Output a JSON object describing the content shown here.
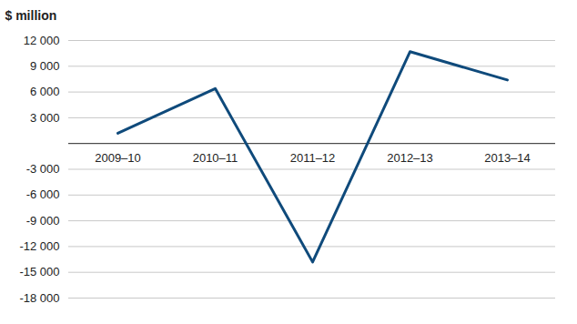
{
  "chart_data": {
    "type": "line",
    "y_label": "$ million",
    "categories": [
      "2009–10",
      "2010–11",
      "2011–12",
      "2012–13",
      "2013–14"
    ],
    "values": [
      1200,
      6400,
      -13800,
      10700,
      7400
    ],
    "color": "#0f4a7b",
    "ylim": [
      -18000,
      12000
    ],
    "yticks": [
      {
        "value": -18000,
        "label": "-18 000"
      },
      {
        "value": -15000,
        "label": "-15 000"
      },
      {
        "value": -12000,
        "label": "-12 000"
      },
      {
        "value": -9000,
        "label": "-9 000"
      },
      {
        "value": -6000,
        "label": "-6 000"
      },
      {
        "value": -3000,
        "label": "-3 000"
      },
      {
        "value": 3000,
        "label": "3 000"
      },
      {
        "value": 6000,
        "label": "6 000"
      },
      {
        "value": 9000,
        "label": "9 000"
      },
      {
        "value": 12000,
        "label": "12 000"
      }
    ],
    "grid": true
  }
}
